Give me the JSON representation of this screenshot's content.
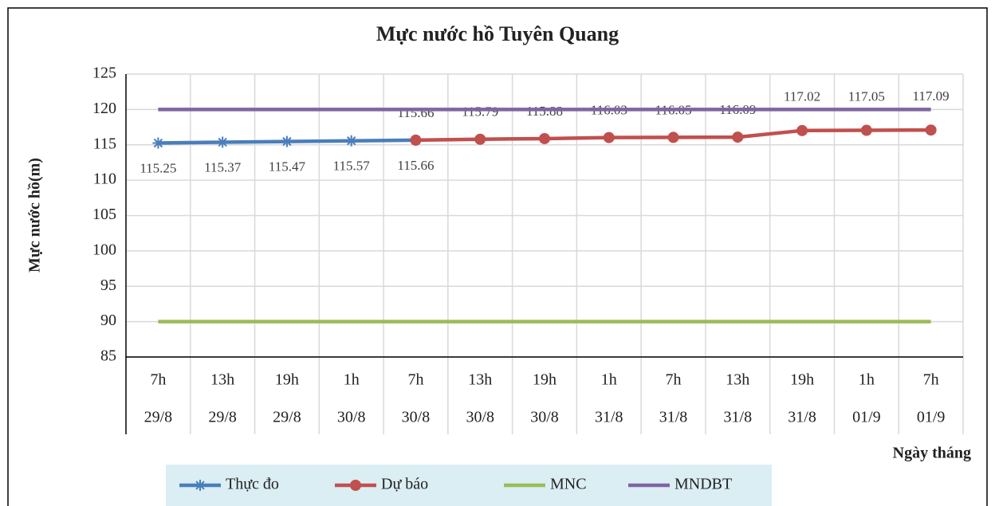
{
  "chart_data": {
    "type": "line",
    "title": "Mực nước hồ Tuyên Quang",
    "y_label": "Mực nước hồ(m)",
    "x_label": "Ngày tháng",
    "categories": [
      [
        "7h",
        "29/8"
      ],
      [
        "13h",
        "29/8"
      ],
      [
        "19h",
        "29/8"
      ],
      [
        "1h",
        "30/8"
      ],
      [
        "7h",
        "30/8"
      ],
      [
        "13h",
        "30/8"
      ],
      [
        "19h",
        "30/8"
      ],
      [
        "1h",
        "31/8"
      ],
      [
        "7h",
        "31/8"
      ],
      [
        "13h",
        "31/8"
      ],
      [
        "19h",
        "31/8"
      ],
      [
        "1h",
        "01/9"
      ],
      [
        "7h",
        "01/9"
      ]
    ],
    "series": [
      {
        "name": "Thực đo",
        "color": "#4a7ebb",
        "marker": "star",
        "labels": "below",
        "values": [
          115.25,
          115.37,
          115.47,
          115.57,
          115.66,
          null,
          null,
          null,
          null,
          null,
          null,
          null,
          null
        ]
      },
      {
        "name": "Dự báo",
        "color": "#c0504d",
        "marker": "circle",
        "labels": "above",
        "values": [
          null,
          null,
          null,
          null,
          115.66,
          115.79,
          115.88,
          116.03,
          116.05,
          116.09,
          117.02,
          117.05,
          117.09
        ]
      },
      {
        "name": "MNC",
        "color": "#9bbb59",
        "values": [
          90,
          90,
          90,
          90,
          90,
          90,
          90,
          90,
          90,
          90,
          90,
          90,
          90
        ]
      },
      {
        "name": "MNDBT",
        "color": "#8064a2",
        "values": [
          120,
          120,
          120,
          120,
          120,
          120,
          120,
          120,
          120,
          120,
          120,
          120,
          120
        ]
      }
    ],
    "ylim": [
      85,
      125
    ],
    "yticks": [
      85,
      90,
      95,
      100,
      105,
      110,
      115,
      120,
      125
    ],
    "grid": true,
    "legend": "bottom"
  }
}
